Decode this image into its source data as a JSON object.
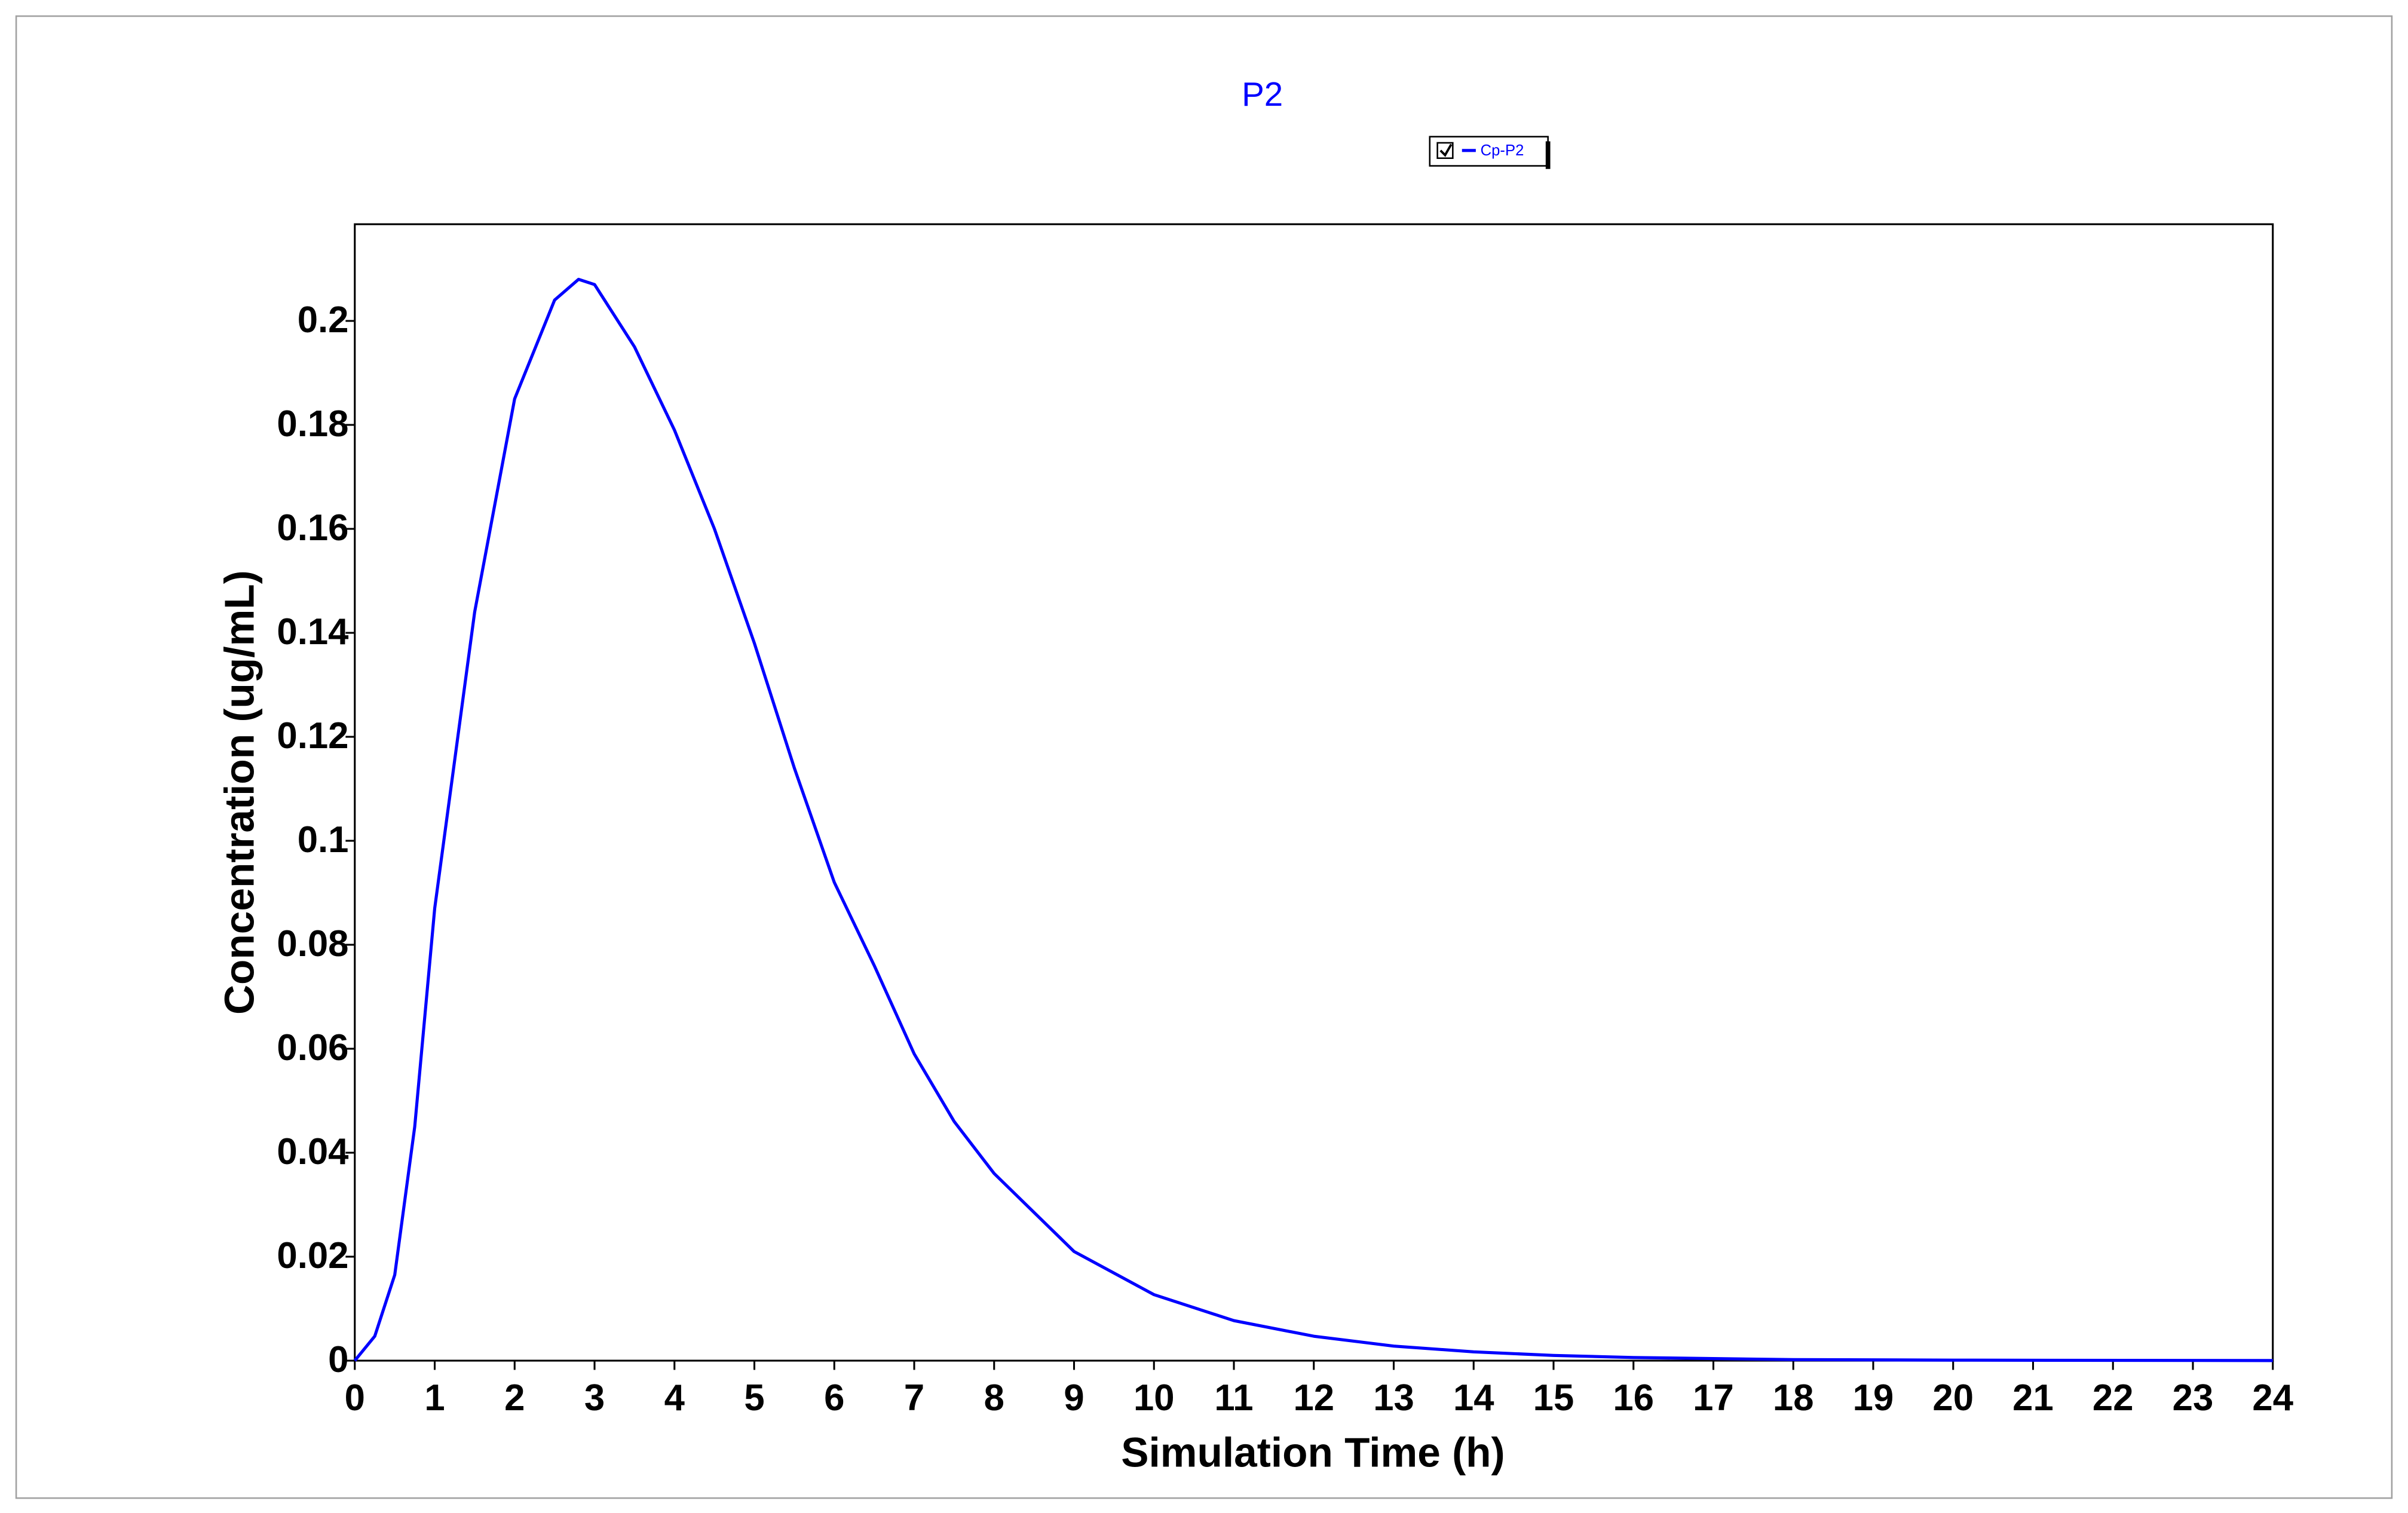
{
  "chart_data": {
    "type": "line",
    "title": "P2",
    "x_label": "Simulation Time (h)",
    "y_label": "Concentration (ug/mL)",
    "x": [
      0,
      0.25,
      0.5,
      0.75,
      1,
      1.5,
      2,
      2.5,
      2.8,
      3,
      3.5,
      4,
      4.5,
      5,
      5.5,
      6,
      6.5,
      7,
      7.5,
      8,
      9,
      10,
      11,
      12,
      13,
      14,
      15,
      16,
      18,
      20,
      24
    ],
    "series": [
      {
        "name": "Cp-P2",
        "color": "#0000ff",
        "values": [
          0,
          0.0047,
          0.0165,
          0.045,
          0.087,
          0.144,
          0.185,
          0.204,
          0.208,
          0.207,
          0.195,
          0.179,
          0.16,
          0.138,
          0.114,
          0.092,
          0.076,
          0.059,
          0.046,
          0.036,
          0.021,
          0.0127,
          0.0077,
          0.0047,
          0.0028,
          0.0017,
          0.001,
          0.0006,
          0.0002,
          0.0001,
          2e-05
        ]
      }
    ],
    "xlim": [
      0,
      24
    ],
    "ylim": [
      0,
      0.2186
    ],
    "xticks": [
      0,
      1,
      2,
      3,
      4,
      5,
      6,
      7,
      8,
      9,
      10,
      11,
      12,
      13,
      14,
      15,
      16,
      17,
      18,
      19,
      20,
      21,
      22,
      23,
      24
    ],
    "yticks": [
      0,
      0.02,
      0.04,
      0.06,
      0.08,
      0.1,
      0.12,
      0.14,
      0.16,
      0.18,
      0.2
    ],
    "grid": false
  }
}
